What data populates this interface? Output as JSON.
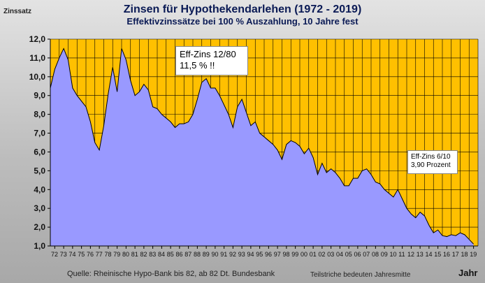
{
  "chart_data": {
    "type": "area",
    "title": "Zinsen für Hypothekendarlehen (1972 - 2019)",
    "subtitle": "Effektivzinssätze bei 100 % Auszahlung,  10 Jahre fest",
    "ylabel": "Zinssatz",
    "xlabel": "Jahr",
    "ylim": [
      1.0,
      12.0
    ],
    "y_ticks": [
      "1,0",
      "2,0",
      "3,0",
      "4,0",
      "5,0",
      "6,0",
      "7,0",
      "8,0",
      "9,0",
      "10,0",
      "11,0",
      "12,0"
    ],
    "x_ticks": [
      "72",
      "73",
      "74",
      "75",
      "76",
      "77",
      "78",
      "79",
      "80",
      "81",
      "82",
      "83",
      "84",
      "85",
      "86",
      "87",
      "88",
      "89",
      "90",
      "91",
      "92",
      "93",
      "94",
      "95",
      "96",
      "97",
      "98",
      "99",
      "00",
      "01",
      "02",
      "03",
      "04",
      "05",
      "06",
      "07",
      "08",
      "09",
      "10",
      "11",
      "12",
      "13",
      "14",
      "15",
      "16",
      "17",
      "18",
      "19"
    ],
    "grid": true,
    "plot_background": "#ffc000",
    "area_color": "#9999ff",
    "series": [
      {
        "x": [
          1972.0,
          1972.5,
          1973.0,
          1973.5,
          1974.0,
          1974.5,
          1975.0,
          1975.5,
          1976.0,
          1976.5,
          1977.0,
          1977.5,
          1978.0,
          1978.5,
          1979.0,
          1979.5,
          1980.0,
          1980.5,
          1981.0,
          1981.5,
          1982.0,
          1982.5,
          1983.0,
          1983.5,
          1984.0,
          1984.5,
          1985.0,
          1985.5,
          1986.0,
          1986.5,
          1987.0,
          1987.5,
          1988.0,
          1988.5,
          1989.0,
          1989.5,
          1990.0,
          1990.5,
          1991.0,
          1991.5,
          1992.0,
          1992.5,
          1993.0,
          1993.5,
          1994.0,
          1994.5,
          1995.0,
          1995.5,
          1996.0,
          1996.5,
          1997.0,
          1997.5,
          1998.0,
          1998.5,
          1999.0,
          1999.5,
          2000.0,
          2000.5,
          2001.0,
          2001.5,
          2002.0,
          2002.5,
          2003.0,
          2003.5,
          2004.0,
          2004.5,
          2005.0,
          2005.5,
          2006.0,
          2006.5,
          2007.0,
          2007.5,
          2008.0,
          2008.5,
          2009.0,
          2009.5,
          2010.0,
          2010.5,
          2011.0,
          2011.5,
          2012.0,
          2012.5,
          2013.0,
          2013.5,
          2014.0,
          2014.5,
          2015.0,
          2015.5,
          2016.0,
          2016.5,
          2017.0,
          2017.5,
          2018.0,
          2018.5,
          2019.0,
          2019.5
        ],
        "values": [
          9.4,
          10.4,
          11.0,
          11.5,
          10.9,
          9.4,
          9.0,
          8.7,
          8.4,
          7.6,
          6.5,
          6.1,
          7.4,
          9.1,
          10.5,
          9.2,
          11.5,
          10.9,
          9.8,
          9.0,
          9.2,
          9.6,
          9.3,
          8.4,
          8.3,
          8.0,
          7.8,
          7.6,
          7.3,
          7.5,
          7.5,
          7.6,
          8.0,
          8.8,
          9.7,
          9.9,
          9.4,
          9.4,
          9.0,
          8.5,
          8.0,
          7.3,
          8.4,
          8.8,
          8.1,
          7.4,
          7.6,
          7.0,
          6.8,
          6.6,
          6.4,
          6.1,
          5.6,
          6.4,
          6.6,
          6.5,
          6.3,
          5.9,
          6.2,
          5.7,
          4.8,
          5.4,
          4.9,
          5.1,
          4.9,
          4.6,
          4.2,
          4.2,
          4.6,
          4.6,
          5.0,
          5.1,
          4.8,
          4.4,
          4.3,
          4.0,
          3.8,
          3.6,
          4.0,
          3.5,
          3.0,
          2.7,
          2.5,
          2.8,
          2.6,
          2.1,
          1.7,
          1.85,
          1.55,
          1.5,
          1.6,
          1.55,
          1.7,
          1.6,
          1.35,
          1.1
        ]
      }
    ],
    "annotations": [
      {
        "lines": [
          "Eff-Zins 12/80",
          "11,5 %   !!"
        ]
      },
      {
        "lines": [
          "Eff-Zins 6/10",
          "3,90 Prozent"
        ]
      }
    ],
    "source": "Quelle: Rheinische Hypo-Bank bis 82, ab 82 Dt. Bundesbank",
    "footnote": "Teilstriche bedeuten Jahresmitte"
  }
}
